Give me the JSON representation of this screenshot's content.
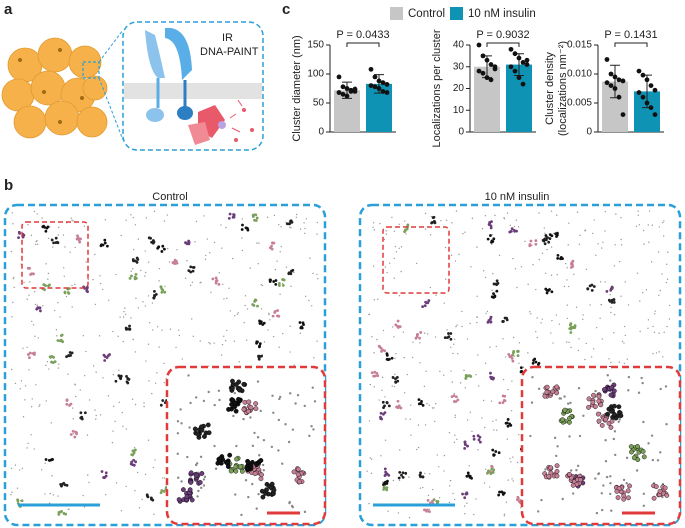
{
  "panel_labels": [
    "a",
    "b",
    "c"
  ],
  "diagram": {
    "receptor_label": "IR",
    "method_label": "DNA-PAINT"
  },
  "images": [
    {
      "title": "Control"
    },
    {
      "title": "10 nM insulin"
    }
  ],
  "legend": [
    {
      "name": "Control",
      "color": "#c6c6c6"
    },
    {
      "name": "10 nM insulin",
      "color": "#0f93b5"
    }
  ],
  "chart_data": [
    {
      "type": "bar",
      "ylabel": [
        "Cluster diameter (nm)"
      ],
      "annotation": "P = 0.0433",
      "values": [
        72,
        83
      ],
      "errors": [
        14,
        16
      ],
      "points": [
        [
          95,
          78,
          75,
          72,
          70,
          68,
          65,
          62,
          70,
          74
        ],
        [
          108,
          95,
          88,
          85,
          82,
          80,
          78,
          75,
          70,
          68
        ]
      ],
      "ylim": [
        0,
        150
      ],
      "yticks": [
        0,
        50,
        100,
        150
      ]
    },
    {
      "type": "bar",
      "ylabel": [
        "Localizations per cluster"
      ],
      "annotation": "P = 0.9032",
      "values": [
        30,
        31
      ],
      "errors": [
        5,
        5
      ],
      "points": [
        [
          40,
          35,
          33,
          31,
          30,
          28,
          27,
          25,
          24,
          29
        ],
        [
          38,
          36,
          34,
          32,
          31,
          30,
          28,
          25,
          22,
          33
        ]
      ],
      "ylim": [
        0,
        40
      ],
      "yticks": [
        0,
        10,
        20,
        30,
        40
      ]
    },
    {
      "type": "bar",
      "ylabel": [
        "Cluster density",
        "(localizations nm⁻²)"
      ],
      "annotation": "P = 0.1431",
      "values": [
        0.0087,
        0.007
      ],
      "errors": [
        0.0028,
        0.0028
      ],
      "points": [
        [
          0.0125,
          0.01,
          0.0095,
          0.009,
          0.0088,
          0.0085,
          0.008,
          0.0075,
          0.006,
          0.003
        ],
        [
          0.0105,
          0.0098,
          0.009,
          0.008,
          0.0072,
          0.0068,
          0.006,
          0.005,
          0.0042,
          0.003
        ]
      ],
      "ylim": [
        0,
        0.015
      ],
      "yticks": [
        0,
        0.005,
        {
          "value": 0.01,
          "label": "0.010"
        },
        0.015
      ]
    }
  ]
}
